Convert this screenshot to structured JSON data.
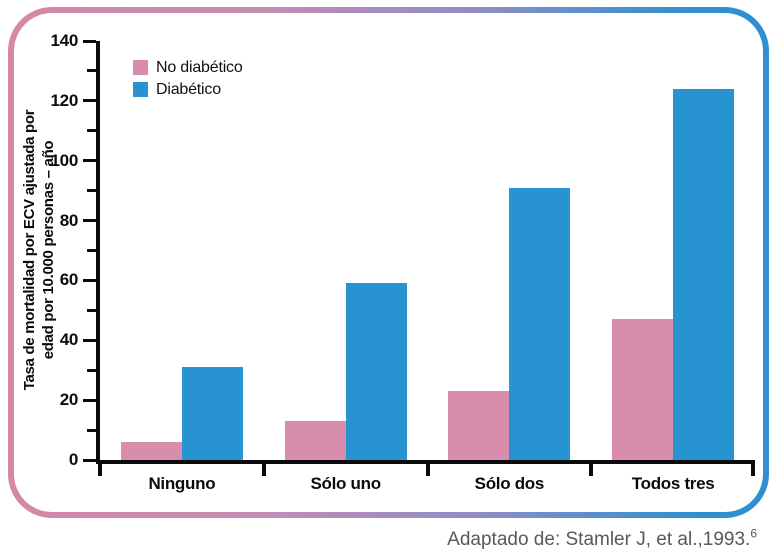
{
  "frame": {
    "gradient_left": "#d687a6",
    "gradient_mid": "#8e8dc5",
    "gradient_right": "#2e90d0",
    "background": "#ffffff"
  },
  "chart_data": {
    "type": "bar",
    "title": "",
    "categories": [
      "Ninguno",
      "Sólo uno",
      "Sólo dos",
      "Todos tres"
    ],
    "series": [
      {
        "name": "No diabético",
        "color": "#d78dab",
        "values": [
          6,
          13,
          23,
          47
        ]
      },
      {
        "name": "Diabético",
        "color": "#2793d0",
        "values": [
          31,
          59,
          91,
          124
        ]
      }
    ],
    "ylabel_line1": "Tasa de mortalidad por ECV ajustada por",
    "ylabel_line2": "edad por 10.000 personas – año",
    "xlabel": "",
    "ylim": [
      0,
      140
    ],
    "ytick_step": 20,
    "yminor_step": 10,
    "yticks": [
      0,
      20,
      40,
      60,
      80,
      100,
      120,
      140
    ],
    "grid": false,
    "legend_position": "top-left",
    "axis_color": "#0b0b0b"
  },
  "caption": {
    "text": "Adaptado de: Stamler J, et al.,1993.",
    "superscript": "6"
  }
}
